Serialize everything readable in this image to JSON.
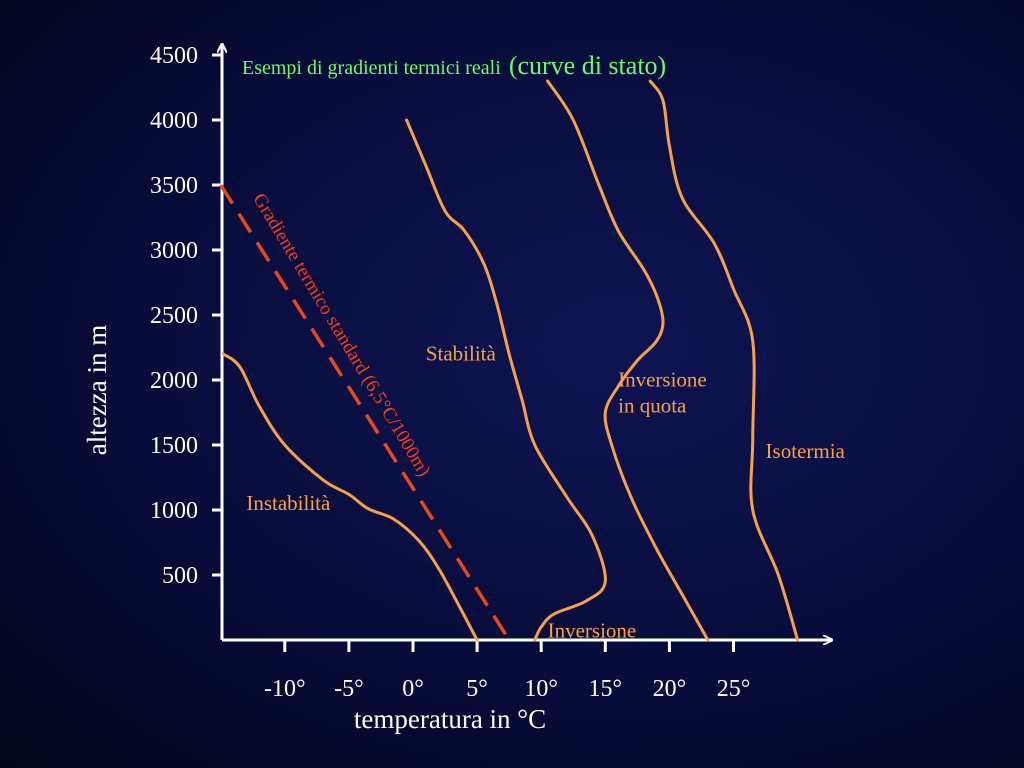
{
  "chart_data": {
    "type": "line",
    "title_main": "Esempi di gradienti termici reali",
    "title_paren": "(curve di stato)",
    "xlabel": "temperatura in °C",
    "ylabel": "altezza in m",
    "x_ticks": [
      "-10°",
      "-5°",
      "0°",
      "5°",
      "10°",
      "15°",
      "20°",
      "25°"
    ],
    "x_tick_values": [
      -10,
      -5,
      0,
      5,
      10,
      15,
      20,
      25
    ],
    "y_ticks": [
      "4500",
      "4000",
      "3500",
      "3000",
      "2500",
      "2000",
      "1500",
      "1000",
      "500"
    ],
    "y_tick_values": [
      4500,
      4000,
      3500,
      3000,
      2500,
      2000,
      1500,
      1000,
      500
    ],
    "xlim": [
      -15,
      33
    ],
    "ylim": [
      0,
      4500
    ],
    "grid": false,
    "series": [
      {
        "name": "Instabilità",
        "color": "#f7a04a",
        "style": "solid",
        "points": [
          [
            -14.8,
            2200
          ],
          [
            -13.5,
            2100
          ],
          [
            -12,
            1800
          ],
          [
            -10,
            1500
          ],
          [
            -7,
            1230
          ],
          [
            -5,
            1120
          ],
          [
            -3.5,
            1010
          ],
          [
            -1.5,
            930
          ],
          [
            0.5,
            760
          ],
          [
            2,
            550
          ],
          [
            3.5,
            280
          ],
          [
            5,
            0
          ]
        ]
      },
      {
        "name": "Gradiente termico standard (6,5°C/1000m)",
        "color": "#e8481e",
        "style": "dashed",
        "points": [
          [
            -15,
            3500
          ],
          [
            7.5,
            0
          ]
        ]
      },
      {
        "name": "Stabilità",
        "color": "#f7a04a",
        "style": "solid",
        "points": [
          [
            -0.5,
            4000
          ],
          [
            1,
            3650
          ],
          [
            2.5,
            3300
          ],
          [
            4,
            3150
          ],
          [
            5.5,
            2900
          ],
          [
            6.5,
            2600
          ],
          [
            7.5,
            2200
          ],
          [
            8.5,
            1850
          ],
          [
            9.5,
            1500
          ],
          [
            12,
            1100
          ],
          [
            14,
            800
          ],
          [
            15,
            450
          ],
          [
            13.5,
            300
          ],
          [
            11,
            200
          ],
          [
            10,
            100
          ],
          [
            9.5,
            0
          ]
        ]
      },
      {
        "name": "Inversione in quota",
        "color": "#f7a04a",
        "style": "solid",
        "points": [
          [
            10.5,
            4300
          ],
          [
            12.5,
            4000
          ],
          [
            14.5,
            3500
          ],
          [
            16,
            3150
          ],
          [
            18,
            2850
          ],
          [
            19,
            2650
          ],
          [
            19.5,
            2450
          ],
          [
            19,
            2300
          ],
          [
            17.5,
            2150
          ],
          [
            16,
            1950
          ],
          [
            15,
            1750
          ],
          [
            15.5,
            1500
          ],
          [
            17,
            1100
          ],
          [
            19,
            700
          ],
          [
            21,
            350
          ],
          [
            23,
            0
          ]
        ]
      },
      {
        "name": "Isotermia",
        "color": "#f7a04a",
        "style": "solid",
        "points": [
          [
            18.5,
            4300
          ],
          [
            19.5,
            4150
          ],
          [
            20,
            3800
          ],
          [
            21,
            3400
          ],
          [
            23.5,
            3050
          ],
          [
            25,
            2700
          ],
          [
            26.5,
            2300
          ],
          [
            26.5,
            1550
          ],
          [
            26.5,
            1000
          ],
          [
            28.5,
            500
          ],
          [
            30,
            0
          ]
        ]
      }
    ],
    "annotations": [
      {
        "text": "Instabilità",
        "x": -13,
        "y": 1000
      },
      {
        "text": "Stabilità",
        "x": 1,
        "y": 2150
      },
      {
        "text": "Inversione",
        "x": 10.5,
        "y": 20
      },
      {
        "text": "Inversione",
        "x": 16,
        "y": 1950
      },
      {
        "text": "in quota",
        "x": 16,
        "y": 1750
      },
      {
        "text": "Isotermia",
        "x": 27.5,
        "y": 1400
      },
      {
        "text": "Gradiente termico standard (6,5°C/1000m)",
        "x": -12.5,
        "y": 3400,
        "rotation": 59
      }
    ]
  }
}
